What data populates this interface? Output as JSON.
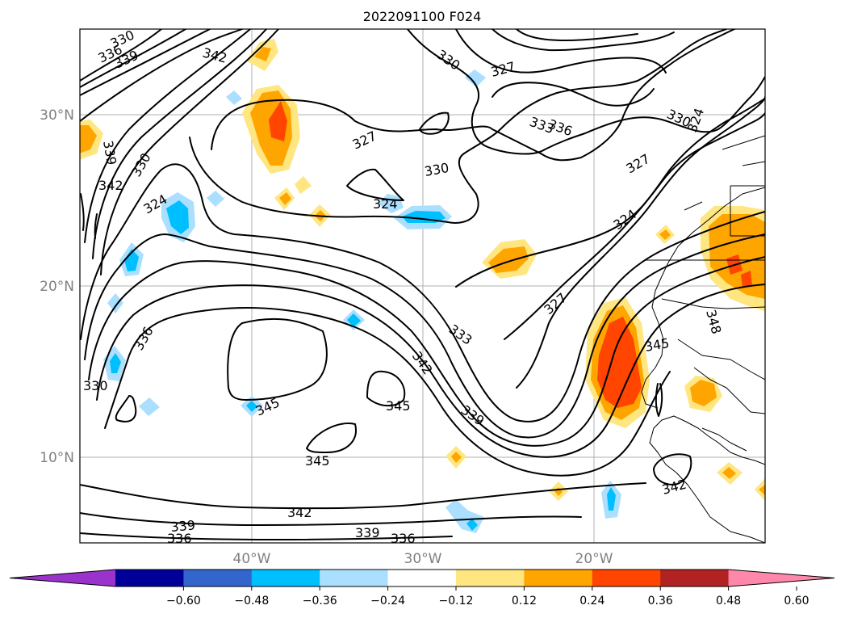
{
  "title": "2022091100 F024",
  "lat_labels": [
    "30°N",
    "20°N",
    "10°N"
  ],
  "lon_labels": [
    "40°W",
    "30°W",
    "20°W"
  ],
  "colorbar": {
    "ticks": [
      "−0.60",
      "−0.48",
      "−0.36",
      "−0.24",
      "−0.12",
      "0.12",
      "0.24",
      "0.36",
      "0.48",
      "0.60"
    ],
    "colors": [
      "#9933cc",
      "#000099",
      "#3366cc",
      "#00bfff",
      "#aadfff",
      "#ffffff",
      "#ffe680",
      "#ffa500",
      "#ff4500",
      "#b22222",
      "#ff88aa"
    ]
  },
  "contour_labels": [
    {
      "text": "330"
    },
    {
      "text": "336"
    },
    {
      "text": "339"
    },
    {
      "text": "342"
    },
    {
      "text": "339"
    },
    {
      "text": "342"
    },
    {
      "text": "330"
    },
    {
      "text": "327"
    },
    {
      "text": "327"
    },
    {
      "text": "330"
    },
    {
      "text": "333"
    },
    {
      "text": "336"
    },
    {
      "text": "330"
    },
    {
      "text": "324"
    },
    {
      "text": "327"
    },
    {
      "text": "330"
    },
    {
      "text": "324"
    },
    {
      "text": "324"
    },
    {
      "text": "324"
    },
    {
      "text": "327"
    },
    {
      "text": "333"
    },
    {
      "text": "342"
    },
    {
      "text": "339"
    },
    {
      "text": "336"
    },
    {
      "text": "330"
    },
    {
      "text": "345"
    },
    {
      "text": "345"
    },
    {
      "text": "345"
    },
    {
      "text": "345"
    },
    {
      "text": "348"
    },
    {
      "text": "342"
    },
    {
      "text": "342"
    },
    {
      "text": "339"
    },
    {
      "text": "336"
    },
    {
      "text": "339"
    },
    {
      "text": "336"
    }
  ]
}
